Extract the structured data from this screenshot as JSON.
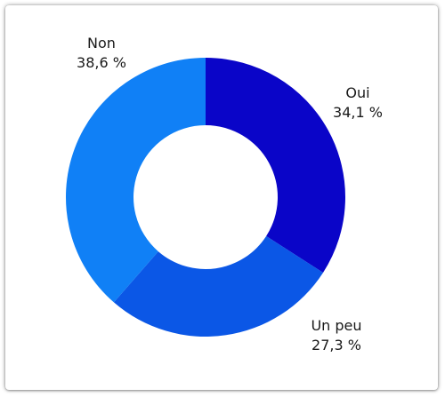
{
  "chart_data": {
    "type": "pie",
    "variant": "donut",
    "categories": [
      "Oui",
      "Un peu",
      "Non"
    ],
    "values": [
      34.1,
      27.3,
      38.6
    ],
    "value_labels": [
      "34,1 %",
      "27,3 %",
      "38,6 %"
    ],
    "colors": [
      "#0A05C8",
      "#0B57E6",
      "#1080F6"
    ],
    "title": "",
    "legend": "none"
  }
}
